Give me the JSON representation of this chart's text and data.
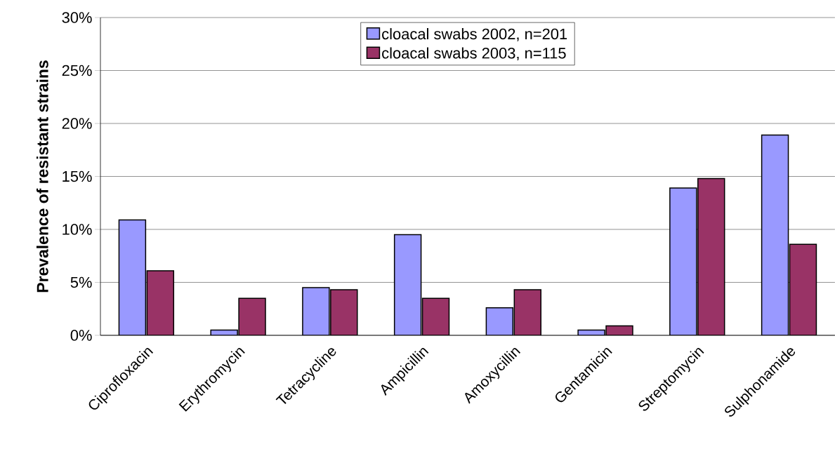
{
  "chart_data": {
    "type": "bar",
    "ylabel": "Prevalence of resistant strains",
    "categories": [
      "Ciprofloxacin",
      "Erythromycin",
      "Tetracycline",
      "Ampicillin",
      "Amoxycillin",
      "Gentamicin",
      "Streptomycin",
      "Sulphonamide"
    ],
    "series": [
      {
        "name": "cloacal swabs 2002, n=201",
        "color": "#9999ff",
        "values": [
          10.9,
          0.5,
          4.5,
          9.5,
          2.6,
          0.5,
          13.9,
          18.9
        ]
      },
      {
        "name": "cloacal swabs 2003, n=115",
        "color": "#993366",
        "values": [
          6.1,
          3.5,
          4.3,
          3.5,
          4.3,
          0.9,
          14.8,
          8.6
        ]
      }
    ],
    "ylim": [
      0,
      30
    ],
    "yticks": [
      {
        "value": 0,
        "label": "0%"
      },
      {
        "value": 5,
        "label": "5%"
      },
      {
        "value": 10,
        "label": "10%"
      },
      {
        "value": 15,
        "label": "15%"
      },
      {
        "value": 20,
        "label": "20%"
      },
      {
        "value": 25,
        "label": "25%"
      },
      {
        "value": 30,
        "label": "30%"
      }
    ],
    "grid": "y",
    "legend": "top"
  }
}
